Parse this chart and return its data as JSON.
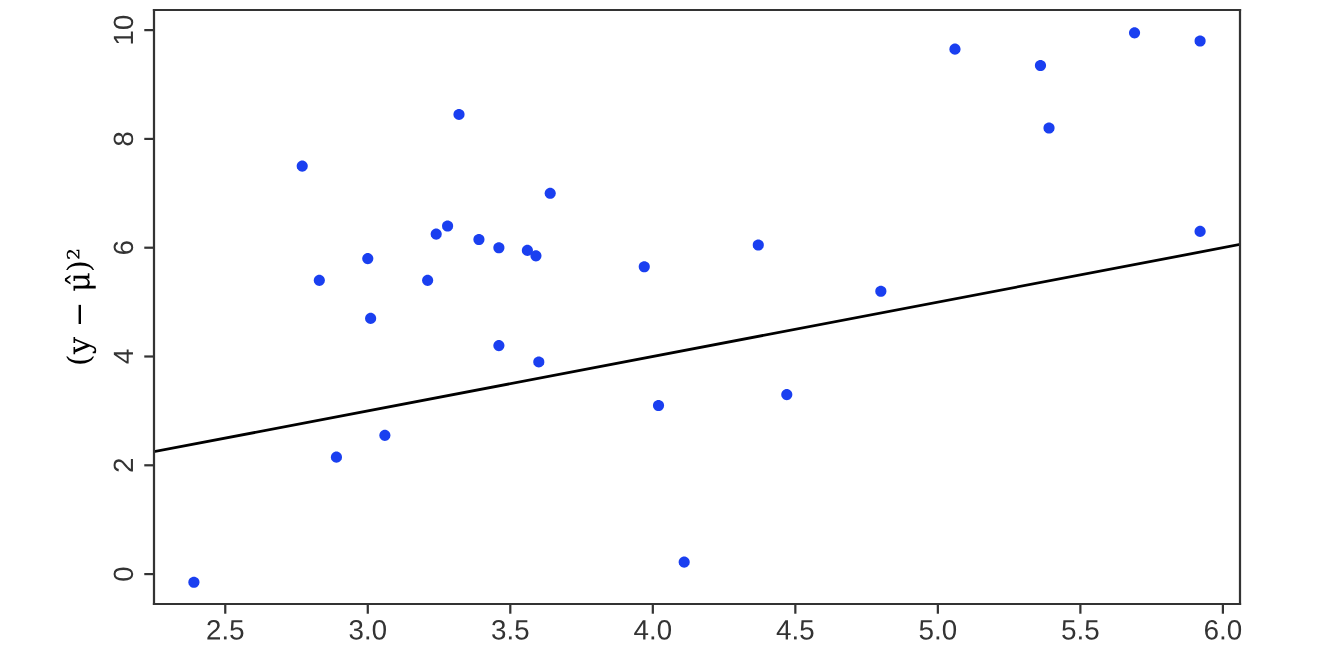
{
  "chart_data": {
    "type": "scatter",
    "ylabel": "(y − μ̂)²",
    "xlim": [
      2.25,
      6.06
    ],
    "ylim": [
      -0.55,
      10.37
    ],
    "xticks": [
      2.5,
      {
        "value": 3,
        "label": "3.0"
      },
      3.5,
      {
        "value": 4,
        "label": "4.0"
      },
      4.5,
      {
        "value": 5,
        "label": "5.0"
      },
      5.5,
      {
        "value": 6,
        "label": "6.0"
      }
    ],
    "yticks": [
      0,
      2,
      4,
      6,
      8,
      10
    ],
    "grid": false,
    "series": [
      {
        "marker": "circle",
        "color": "#1a3ff0",
        "x": [
          2.39,
          2.77,
          2.83,
          2.89,
          3.0,
          3.01,
          3.06,
          3.21,
          3.24,
          3.28,
          3.32,
          3.39,
          3.46,
          3.46,
          3.56,
          3.59,
          3.6,
          3.64,
          3.97,
          4.02,
          4.11,
          4.37,
          4.47,
          4.8,
          5.06,
          5.36,
          5.39,
          5.69,
          5.92,
          5.92
        ],
        "values": [
          -0.15,
          7.5,
          5.4,
          2.15,
          5.8,
          4.7,
          2.55,
          5.4,
          6.25,
          6.4,
          8.45,
          6.15,
          6.0,
          4.2,
          5.95,
          5.85,
          3.9,
          7.0,
          5.65,
          3.1,
          0.22,
          6.05,
          3.3,
          5.2,
          9.65,
          9.35,
          8.2,
          9.95,
          9.8,
          6.3
        ]
      },
      {
        "type": "line",
        "color": "#000000",
        "x": [
          2.25,
          6.06
        ],
        "values": [
          2.25,
          6.06
        ]
      }
    ]
  }
}
